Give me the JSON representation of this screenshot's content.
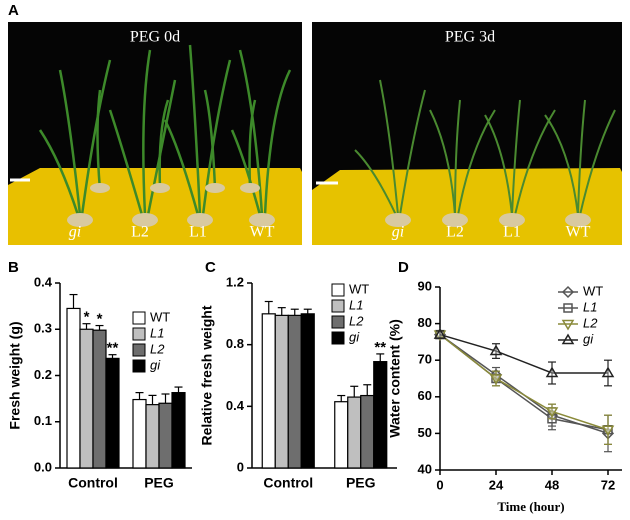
{
  "figure": {
    "panel_label": "A",
    "photos": [
      {
        "title": "PEG 0d",
        "labels": [
          "gi",
          "L2",
          "L1",
          "WT"
        ]
      },
      {
        "title": "PEG 3d",
        "labels": [
          "gi",
          "L2",
          "L1",
          "WT"
        ]
      }
    ]
  },
  "chart_data": [
    {
      "type": "bar",
      "panel_label": "B",
      "ylabel": "Fresh weight (g)",
      "categories": [
        "Control",
        "PEG"
      ],
      "ylim": [
        0,
        0.4
      ],
      "yticks": [
        {
          "value": 0,
          "label": "0.0"
        },
        0.1,
        0.2,
        0.3,
        0.4
      ],
      "series": [
        {
          "name": "WT",
          "color": "#ffffff",
          "values": [
            0.345,
            0.148
          ],
          "errors": [
            0.03,
            0.015
          ]
        },
        {
          "name": "L1",
          "color": "#bfbfbf",
          "values": [
            0.3,
            0.137
          ],
          "errors": [
            0.012,
            0.02
          ],
          "annotations": [
            "*",
            null
          ]
        },
        {
          "name": "L2",
          "color": "#6e6e6e",
          "values": [
            0.298,
            0.14
          ],
          "errors": [
            0.01,
            0.02
          ],
          "annotations": [
            "*",
            null
          ]
        },
        {
          "name": "gi",
          "color": "#000000",
          "values": [
            0.237,
            0.163
          ],
          "errors": [
            0.008,
            0.012
          ],
          "annotations": [
            "**",
            null
          ]
        }
      ]
    },
    {
      "type": "bar",
      "panel_label": "C",
      "ylabel": "Relative fresh weight",
      "categories": [
        "Control",
        "PEG"
      ],
      "ylim": [
        0,
        1.2
      ],
      "yticks": [
        0,
        0.4,
        0.8,
        1.2
      ],
      "series": [
        {
          "name": "WT",
          "color": "#ffffff",
          "values": [
            1.0,
            0.43
          ],
          "errors": [
            0.08,
            0.04
          ]
        },
        {
          "name": "L1",
          "color": "#bfbfbf",
          "values": [
            0.99,
            0.46
          ],
          "errors": [
            0.05,
            0.07
          ]
        },
        {
          "name": "L2",
          "color": "#6e6e6e",
          "values": [
            0.99,
            0.47
          ],
          "errors": [
            0.04,
            0.07
          ]
        },
        {
          "name": "gi",
          "color": "#000000",
          "values": [
            1.0,
            0.69
          ],
          "errors": [
            0.03,
            0.05
          ],
          "annotations": [
            null,
            "**"
          ]
        }
      ]
    },
    {
      "type": "line",
      "panel_label": "D",
      "ylabel": "Water content (%)",
      "xlabel": "Time (hour)",
      "x": [
        0,
        24,
        48,
        72
      ],
      "xlim": [
        0,
        78
      ],
      "xticks": [
        0,
        24,
        48,
        72
      ],
      "ylim": [
        40,
        90
      ],
      "yticks": [
        40,
        50,
        60,
        70,
        80,
        90
      ],
      "series": [
        {
          "name": "WT",
          "color": "#555555",
          "marker": "diamond",
          "values": [
            77,
            66,
            55,
            50
          ],
          "errors": [
            1,
            2,
            3,
            5
          ]
        },
        {
          "name": "L1",
          "color": "#555555",
          "marker": "square",
          "values": [
            77,
            65,
            54,
            51
          ],
          "errors": [
            1,
            2,
            3,
            4
          ]
        },
        {
          "name": "L2",
          "color": "#8a8a3a",
          "marker": "triangle-down",
          "values": [
            77,
            65,
            56,
            51
          ],
          "errors": [
            1,
            2,
            2,
            4
          ]
        },
        {
          "name": "gi",
          "color": "#222222",
          "marker": "triangle-up",
          "values": [
            77,
            72.5,
            66.5,
            66.5
          ],
          "errors": [
            1,
            2,
            3,
            3.5
          ]
        }
      ]
    }
  ]
}
